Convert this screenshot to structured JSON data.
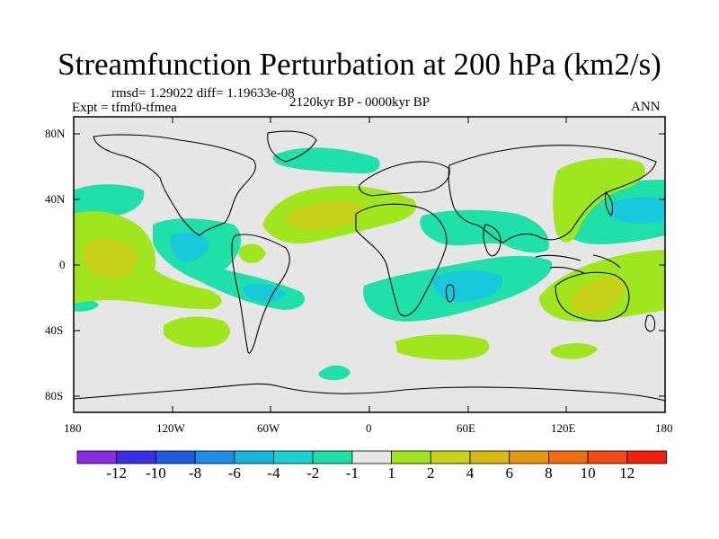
{
  "title": "Streamfunction Perturbation at 200 hPa (km2/s)",
  "stats": "rmsd= 1.29022 diff= 1.19633e-08",
  "experiment": "Expt = tfmf0-tfmea",
  "period": "2120kyr BP - 0000kyr BP",
  "season": "ANN",
  "lat_ticks": [
    "80N",
    "40N",
    "0",
    "40S",
    "80S"
  ],
  "lon_ticks": [
    "180",
    "120W",
    "60W",
    "0",
    "60E",
    "120E",
    "180"
  ],
  "colorbar": {
    "colors": [
      "#8a2be2",
      "#3a2de8",
      "#1f5ae0",
      "#1f8fe6",
      "#18b6dc",
      "#19d2d2",
      "#1ee0a8",
      "#e6e6e6",
      "#a0e61e",
      "#c8d21a",
      "#d7b814",
      "#e39a10",
      "#ee7010",
      "#f24a12",
      "#f2200f"
    ],
    "labels": [
      "-12",
      "-10",
      "-8",
      "-6",
      "-4",
      "-2",
      "-1",
      "1",
      "2",
      "4",
      "6",
      "8",
      "10",
      "12"
    ]
  },
  "field_colors": {
    "neg_strong": "#18c8dc",
    "neg_weak": "#1ee0a8",
    "pos_weak": "#a0e61e",
    "pos_strong": "#c8d21a",
    "background": "#e6e6e6"
  }
}
